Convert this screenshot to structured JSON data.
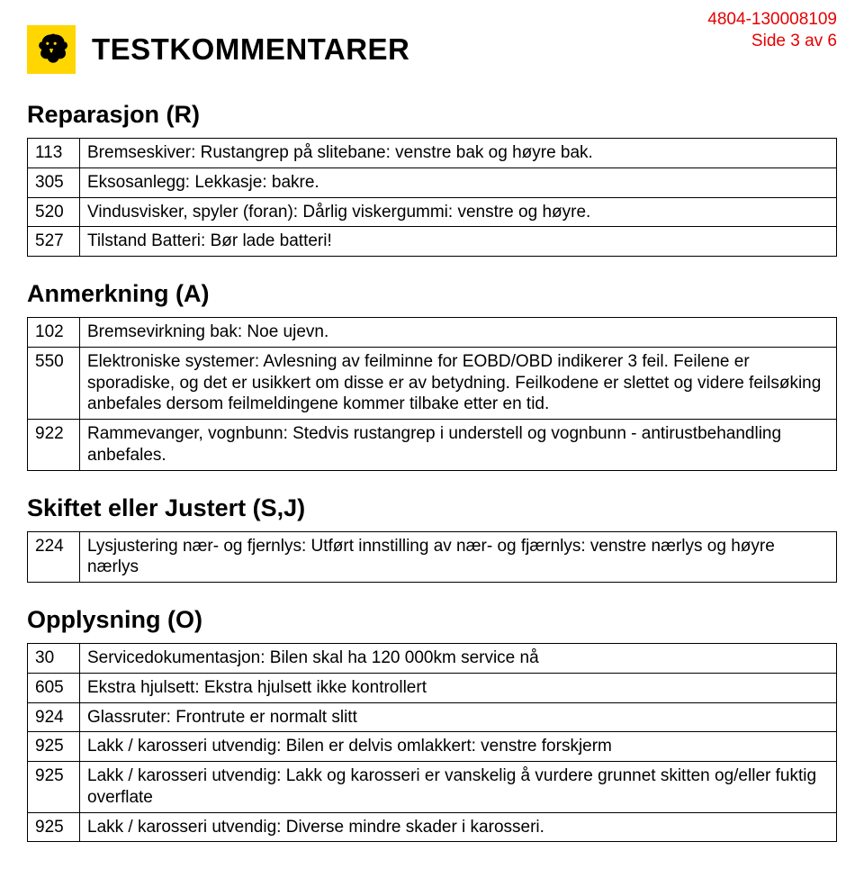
{
  "meta": {
    "doc_number": "4804-130008109",
    "page_info": "Side 3 av 6",
    "meta_color": "#e60000"
  },
  "title": "TESTKOMMENTARER",
  "sections": [
    {
      "heading": "Reparasjon (R)",
      "rows": [
        {
          "code": "113",
          "text": "Bremseskiver: Rustangrep på slitebane: venstre bak og høyre bak."
        },
        {
          "code": "305",
          "text": "Eksosanlegg: Lekkasje: bakre."
        },
        {
          "code": "520",
          "text": "Vindusvisker, spyler (foran): Dårlig viskergummi: venstre og høyre."
        },
        {
          "code": "527",
          "text": "Tilstand Batteri: Bør lade batteri!"
        }
      ]
    },
    {
      "heading": "Anmerkning (A)",
      "rows": [
        {
          "code": "102",
          "text": "Bremsevirkning bak: Noe ujevn."
        },
        {
          "code": "550",
          "text": "Elektroniske systemer: Avlesning av feilminne for EOBD/OBD indikerer 3 feil. Feilene er sporadiske, og det er usikkert om disse er av betydning. Feilkodene er slettet og videre feilsøking anbefales dersom feilmeldingene kommer tilbake etter en tid."
        },
        {
          "code": "922",
          "text": "Rammevanger, vognbunn: Stedvis rustangrep i understell og vognbunn - antirustbehandling anbefales."
        }
      ]
    },
    {
      "heading": "Skiftet eller Justert (S,J)",
      "rows": [
        {
          "code": "224",
          "text": "Lysjustering nær- og fjernlys: Utført innstilling av nær- og fjærnlys: venstre nærlys og høyre nærlys"
        }
      ]
    },
    {
      "heading": "Opplysning (O)",
      "rows": [
        {
          "code": "30",
          "text": "Servicedokumentasjon: Bilen skal ha 120 000km service nå"
        },
        {
          "code": "605",
          "text": "Ekstra hjulsett: Ekstra hjulsett ikke kontrollert"
        },
        {
          "code": "924",
          "text": "Glassruter: Frontrute er normalt slitt"
        },
        {
          "code": "925",
          "text": "Lakk / karosseri utvendig: Bilen er delvis omlakkert: venstre forskjerm"
        },
        {
          "code": "925",
          "text": "Lakk / karosseri utvendig: Lakk og karosseri er vanskelig å vurdere grunnet skitten og/eller fuktig overflate"
        },
        {
          "code": "925",
          "text": "Lakk / karosseri utvendig: Diverse mindre skader i karosseri."
        }
      ]
    }
  ]
}
